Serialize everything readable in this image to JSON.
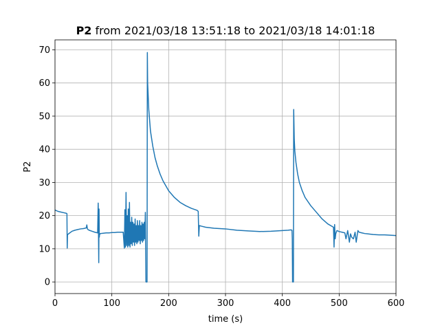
{
  "chart_data": {
    "type": "line",
    "title": {
      "bold": "P2",
      "rest": " from 2021/03/18 13:51:18 to 2021/03/18 14:01:18"
    },
    "xlabel": "time (s)",
    "ylabel": "P2",
    "xlim": [
      0,
      600
    ],
    "ylim": [
      -3.5,
      73
    ],
    "xticks": [
      0,
      100,
      200,
      300,
      400,
      500,
      600
    ],
    "yticks": [
      0,
      10,
      20,
      30,
      40,
      50,
      60,
      70
    ],
    "grid": true,
    "legend": "none",
    "colors": {
      "series": "#1f77b4"
    },
    "series": [
      {
        "x": [
          0,
          5,
          10,
          15,
          20,
          21,
          21.5,
          22,
          23,
          26,
          30,
          35,
          40,
          45,
          50,
          55,
          56,
          57,
          58,
          60,
          65,
          70,
          75,
          76,
          77,
          77.5,
          78,
          78.5,
          79,
          80,
          85,
          90,
          95,
          100,
          105,
          110,
          115,
          120,
          122,
          123,
          124,
          125,
          126,
          127,
          128,
          129,
          130,
          131,
          132,
          133,
          134,
          135,
          136,
          137,
          138,
          139,
          140,
          141,
          142,
          143,
          144,
          145,
          146,
          147,
          148,
          149,
          150,
          151,
          152,
          153,
          154,
          155,
          156,
          157,
          158,
          159,
          160,
          160.5,
          161,
          161.5,
          162,
          162.5,
          163,
          165,
          168,
          172,
          176,
          180,
          185,
          190,
          200,
          210,
          220,
          230,
          240,
          250,
          252,
          253,
          254,
          258,
          265,
          270,
          280,
          300,
          320,
          340,
          360,
          380,
          400,
          410,
          415,
          417,
          417.5,
          418,
          418.5,
          419,
          419.5,
          420,
          421,
          422,
          424,
          427,
          430,
          435,
          440,
          450,
          460,
          470,
          480,
          490,
          491,
          492,
          493,
          494,
          496,
          500,
          505,
          510,
          512,
          515,
          518,
          520,
          522,
          525,
          528,
          530,
          533,
          535,
          540,
          545,
          550,
          555,
          560,
          570,
          580,
          590,
          600
        ],
        "y": [
          21.7,
          21.3,
          21.1,
          20.9,
          20.7,
          20.6,
          10.2,
          14.2,
          14.4,
          14.8,
          15.3,
          15.6,
          15.8,
          16.0,
          16.1,
          16.3,
          17.2,
          16.0,
          15.8,
          15.6,
          15.3,
          15.0,
          14.8,
          23.8,
          5.8,
          22.0,
          13.5,
          14.6,
          14.4,
          14.6,
          14.7,
          14.8,
          14.8,
          14.9,
          14.9,
          15.0,
          15.0,
          15.0,
          10.2,
          21.8,
          10.5,
          27.0,
          11.0,
          20.0,
          10.5,
          22.0,
          11.0,
          24.0,
          10.5,
          18.0,
          11.5,
          19.5,
          11.0,
          18.0,
          12.0,
          17.5,
          11.0,
          19.0,
          12.0,
          17.0,
          11.5,
          18.5,
          12.0,
          17.0,
          12.5,
          18.5,
          11.5,
          17.0,
          12.5,
          18.0,
          12.0,
          17.5,
          12.5,
          18.0,
          13.0,
          21.0,
          0.0,
          0.0,
          0.0,
          0.0,
          0.0,
          69.2,
          60.0,
          52.0,
          45.5,
          41.0,
          37.5,
          35.0,
          32.5,
          30.5,
          27.5,
          25.5,
          24.0,
          23.0,
          22.2,
          21.6,
          21.3,
          13.8,
          17.0,
          16.8,
          16.5,
          16.4,
          16.2,
          16.0,
          15.6,
          15.4,
          15.2,
          15.3,
          15.5,
          15.6,
          15.7,
          15.6,
          13.0,
          0.0,
          0.0,
          0.0,
          0.0,
          52.0,
          43.0,
          39.5,
          36.0,
          32.5,
          30.0,
          27.5,
          25.5,
          23.0,
          21.0,
          19.0,
          17.5,
          16.5,
          10.5,
          17.3,
          13.0,
          14.5,
          15.5,
          15.2,
          15.0,
          14.8,
          13.0,
          15.5,
          12.0,
          14.5,
          13.5,
          13.0,
          15.0,
          12.0,
          15.5,
          15.0,
          14.8,
          14.6,
          14.5,
          14.4,
          14.3,
          14.2,
          14.2,
          14.1,
          14.0
        ]
      }
    ]
  }
}
